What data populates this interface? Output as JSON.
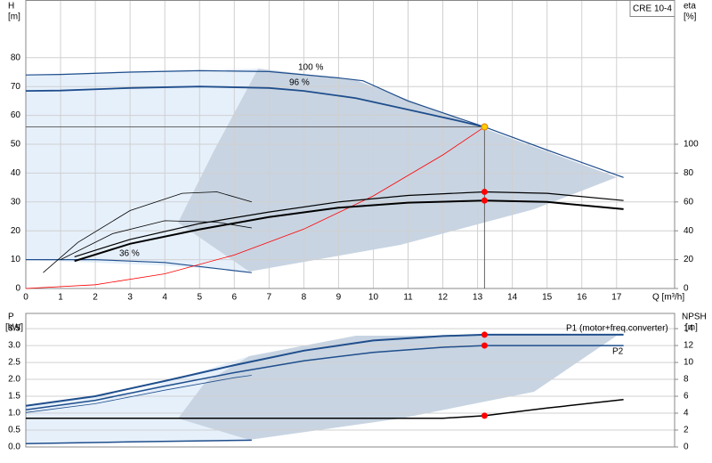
{
  "chart_data": [
    {
      "type": "line",
      "title": "CRE 10-4",
      "ylabel": "H",
      "yunit": "[m]",
      "y2label": "eta",
      "y2unit": "[%]",
      "xlabel": "Q [m³/h]",
      "xlim": [
        0,
        18.67
      ],
      "xticks": [
        0,
        1,
        2,
        3,
        4,
        5,
        6,
        7,
        8,
        9,
        10,
        11,
        12,
        13,
        14,
        15,
        16,
        17
      ],
      "ylim": [
        0,
        100
      ],
      "yticks": [
        0,
        10,
        20,
        30,
        40,
        50,
        60,
        70,
        80
      ],
      "y2lim": [
        0,
        200
      ],
      "y2ticks": [
        0,
        20,
        40,
        60,
        80,
        100
      ],
      "grid": true,
      "series": [
        {
          "name": "100 %",
          "color": "#1f4e8c",
          "linewidth": 1.2,
          "x": [
            0,
            1,
            3,
            5,
            7,
            9,
            9.7,
            11,
            13.2,
            15,
            17.2
          ],
          "values": [
            74,
            74.2,
            75,
            75.5,
            75.2,
            73,
            72,
            65,
            56,
            48,
            38.5
          ]
        },
        {
          "name": "96 %",
          "color": "#1f4e8c",
          "linewidth": 1.8,
          "x": [
            0,
            1,
            3,
            5,
            7,
            8,
            9.5,
            11,
            12.5,
            13.2
          ],
          "values": [
            68.5,
            68.6,
            69.5,
            70,
            69.5,
            68.5,
            66,
            62,
            58,
            56
          ]
        },
        {
          "name": "36 %",
          "color": "#1f4e8c",
          "linewidth": 1.2,
          "x": [
            0,
            2,
            4,
            6.5
          ],
          "values": [
            10,
            10,
            9,
            5.5
          ]
        },
        {
          "color": "#ff0000",
          "linewidth": 0.8,
          "x": [
            0,
            2,
            4,
            6,
            8,
            10,
            12,
            13.2
          ],
          "values": [
            0,
            1.3,
            5.1,
            11.6,
            20.6,
            32.1,
            46.3,
            56
          ]
        },
        {
          "color": "#000000",
          "linewidth": 1.2,
          "axis": "y2",
          "x": [
            1.4,
            3,
            5,
            7,
            9,
            11,
            13.2,
            15,
            17.2
          ],
          "values": [
            22,
            34,
            45,
            53,
            60,
            64.5,
            67,
            66,
            61
          ]
        },
        {
          "color": "#000000",
          "linewidth": 2,
          "axis": "y2",
          "x": [
            1.4,
            3,
            5,
            7,
            9,
            11,
            13.2,
            15,
            17.2
          ],
          "values": [
            19,
            31,
            41,
            49.5,
            56,
            59.5,
            61,
            60,
            55
          ]
        },
        {
          "color": "#000000",
          "linewidth": 0.8,
          "axis": "y2",
          "x": [
            0.5,
            1.5,
            3,
            4.5,
            5.5,
            6.5
          ],
          "values": [
            11,
            32,
            54,
            66,
            67,
            60
          ]
        },
        {
          "color": "#000000",
          "linewidth": 0.8,
          "axis": "y2",
          "x": [
            1,
            2.5,
            4,
            5.5,
            6.5
          ],
          "values": [
            20,
            38,
            47,
            46,
            42
          ]
        }
      ],
      "markers": [
        {
          "x": 13.2,
          "y": 56,
          "color": "#ffcc00"
        },
        {
          "x": 13.2,
          "y": 67,
          "axis": "y2",
          "color": "#ff0000"
        },
        {
          "x": 13.2,
          "y": 61,
          "axis": "y2",
          "color": "#ff0000"
        }
      ]
    },
    {
      "type": "line",
      "ylabel": "P",
      "yunit": "[kW]",
      "y2label": "NPSH",
      "y2unit": "[m]",
      "xlim": [
        0,
        18.67
      ],
      "xticks": [],
      "ylim": [
        0,
        3.95
      ],
      "yticks": [
        {
          "value": 0,
          "label": "0.0"
        },
        {
          "value": 0.5,
          "label": "0.5"
        },
        {
          "value": 1,
          "label": "1.0"
        },
        {
          "value": 1.5,
          "label": "1.5"
        },
        {
          "value": 2,
          "label": "2.0"
        },
        {
          "value": 2.5,
          "label": "2.5"
        },
        {
          "value": 3,
          "label": "3.0"
        },
        {
          "value": 3.5,
          "label": "3.5"
        }
      ],
      "y2lim": [
        0,
        15.8
      ],
      "y2ticks": [
        0,
        2,
        4,
        6,
        8,
        10,
        12,
        14
      ],
      "grid": true,
      "series": [
        {
          "name": "P1 (motor+freq.converter)",
          "color": "#1f4e8c",
          "linewidth": 2,
          "x": [
            0,
            2,
            4,
            6,
            8,
            10,
            12,
            13.2,
            17.2
          ],
          "values": [
            1.22,
            1.5,
            1.95,
            2.42,
            2.85,
            3.15,
            3.28,
            3.32,
            3.32
          ]
        },
        {
          "name": "P2",
          "color": "#1f4e8c",
          "linewidth": 1.5,
          "x": [
            0,
            2,
            4,
            6,
            8,
            10,
            12,
            13.2,
            17.2
          ],
          "values": [
            1.1,
            1.38,
            1.8,
            2.2,
            2.55,
            2.8,
            2.95,
            3.0,
            3.0
          ]
        },
        {
          "color": "#1f4e8c",
          "linewidth": 0.8,
          "x": [
            0,
            2,
            4,
            6,
            6.5
          ],
          "values": [
            1.02,
            1.28,
            1.68,
            2.05,
            2.12
          ]
        },
        {
          "color": "#1f4e8c",
          "linewidth": 1.5,
          "x": [
            0,
            3,
            6.5
          ],
          "values": [
            0.1,
            0.15,
            0.2
          ]
        },
        {
          "color": "#000000",
          "linewidth": 1.5,
          "axis": "y2",
          "x": [
            0,
            6.5,
            9,
            12,
            13.2,
            15,
            17.2
          ],
          "values": [
            3.4,
            3.4,
            3.4,
            3.4,
            3.7,
            4.6,
            5.6
          ]
        }
      ],
      "markers": [
        {
          "x": 13.2,
          "y": 3.32,
          "color": "#ff0000"
        },
        {
          "x": 13.2,
          "y": 3.0,
          "color": "#ff0000"
        },
        {
          "x": 13.2,
          "y": 3.7,
          "axis": "y2",
          "color": "#ff0000"
        }
      ]
    }
  ]
}
